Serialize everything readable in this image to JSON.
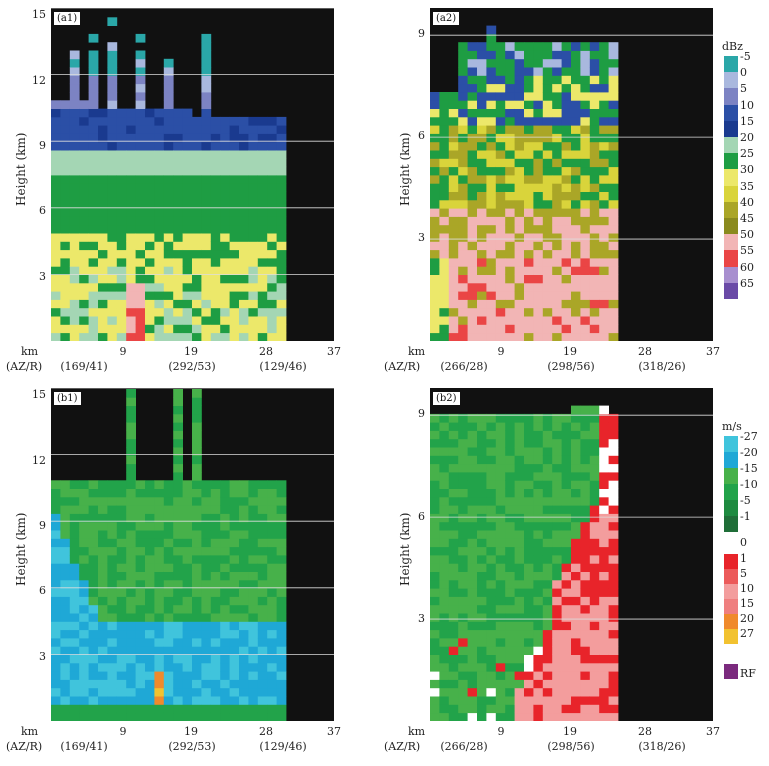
{
  "panels": [
    {
      "id": "a1",
      "tag": "(a1)",
      "ylabel": "Height (km)",
      "yticks": [
        "15",
        "12",
        "9",
        "6",
        "3"
      ],
      "xticks": [
        "9",
        "19",
        "28",
        "37"
      ],
      "km_label": "km",
      "az_label": "(AZ/R)",
      "az_ticks": [
        "(169/41)",
        "(292/53)",
        "(129/46)"
      ]
    },
    {
      "id": "a2",
      "tag": "(a2)",
      "ylabel": "Height (km)",
      "yticks": [
        "9",
        "6",
        "3"
      ],
      "xticks": [
        "9",
        "19",
        "28",
        "37"
      ],
      "km_label": "km",
      "az_label": "(AZ/R)",
      "az_ticks": [
        "(266/28)",
        "(298/56)",
        "(318/26)"
      ]
    },
    {
      "id": "b1",
      "tag": "(b1)",
      "ylabel": "Height (km)",
      "yticks": [
        "15",
        "12",
        "9",
        "6",
        "3"
      ],
      "xticks": [
        "9",
        "19",
        "28",
        "37"
      ],
      "km_label": "km",
      "az_label": "(AZ/R)",
      "az_ticks": [
        "(169/41)",
        "(292/53)",
        "(129/46)"
      ]
    },
    {
      "id": "b2",
      "tag": "(b2)",
      "ylabel": "Height (km)",
      "yticks": [
        "9",
        "6",
        "3"
      ],
      "xticks": [
        "9",
        "19",
        "28",
        "37"
      ],
      "km_label": "km",
      "az_label": "(AZ/R)",
      "az_ticks": [
        "(266/28)",
        "(298/56)",
        "(318/26)"
      ]
    }
  ],
  "legend_reflectivity": {
    "title": "dBz",
    "levels": [
      {
        "label": "-5",
        "color": "#2aa7a8"
      },
      {
        "label": "0",
        "color": "#a9b8de"
      },
      {
        "label": "5",
        "color": "#7c83c3"
      },
      {
        "label": "10",
        "color": "#2b4fa6"
      },
      {
        "label": "15",
        "color": "#1a3a8f"
      },
      {
        "label": "20",
        "color": "#a4d6b4"
      },
      {
        "label": "25",
        "color": "#1e9d43"
      },
      {
        "label": "30",
        "color": "#ece86a"
      },
      {
        "label": "35",
        "color": "#d9d43b"
      },
      {
        "label": "40",
        "color": "#aaa627"
      },
      {
        "label": "45",
        "color": "#8a8a1e"
      },
      {
        "label": "50",
        "color": "#f2b5b5"
      },
      {
        "label": "55",
        "color": "#ea4545"
      },
      {
        "label": "60",
        "color": "#a88fcf"
      },
      {
        "label": "65",
        "color": "#6a4aa7"
      }
    ]
  },
  "legend_velocity": {
    "title": "m/s",
    "negative": [
      {
        "label": "-27",
        "color": "#40c4dc"
      },
      {
        "label": "-20",
        "color": "#1fa8d6"
      },
      {
        "label": "-15",
        "color": "#47b14a"
      },
      {
        "label": "-10",
        "color": "#22a34a"
      },
      {
        "label": "-5",
        "color": "#1e8a40"
      },
      {
        "label": "-1",
        "color": "#1f6e38"
      }
    ],
    "zero": {
      "label": "0",
      "color": "#ffffff"
    },
    "positive": [
      {
        "label": "1",
        "color": "#e8242a"
      },
      {
        "label": "5",
        "color": "#ec5a5a"
      },
      {
        "label": "10",
        "color": "#f39d9d"
      },
      {
        "label": "15",
        "color": "#ef7f7f"
      },
      {
        "label": "20",
        "color": "#f08a2c"
      },
      {
        "label": "27",
        "color": "#f2c230"
      }
    ],
    "rf": {
      "label": "RF",
      "color": "#7b2a7e"
    }
  },
  "chart_data": [
    {
      "type": "heatmap",
      "title": "",
      "tag": "(a1)",
      "quantity": "reflectivity (dBz)",
      "xlabel": "km (AZ/R)",
      "ylabel": "Height (km)",
      "xlim": [
        0,
        37
      ],
      "ylim": [
        0,
        15
      ],
      "x_ticks": [
        9,
        19,
        28,
        37
      ],
      "y_ticks": [
        3,
        6,
        9,
        12,
        15
      ],
      "echo_top_km": 14.5,
      "echo_extent_km": [
        0,
        30.5
      ],
      "max_dBz": 55
    },
    {
      "type": "heatmap",
      "title": "",
      "tag": "(a2)",
      "quantity": "reflectivity (dBz)",
      "xlabel": "km (AZ/R)",
      "ylabel": "Height (km)",
      "xlim": [
        0,
        37
      ],
      "ylim": [
        0,
        9.8
      ],
      "x_ticks": [
        9,
        19,
        28,
        37
      ],
      "y_ticks": [
        3,
        6,
        9
      ],
      "echo_top_km": 9.3,
      "echo_extent_km": [
        0,
        24.5
      ],
      "max_dBz": 55
    },
    {
      "type": "heatmap",
      "title": "",
      "tag": "(b1)",
      "quantity": "radial velocity (m/s)",
      "xlabel": "km (AZ/R)",
      "ylabel": "Height (km)",
      "xlim": [
        0,
        37
      ],
      "ylim": [
        0,
        15
      ],
      "x_ticks": [
        9,
        19,
        28,
        37
      ],
      "y_ticks": [
        3,
        6,
        9,
        12,
        15
      ],
      "echo_top_km": 14.8,
      "echo_extent_km": [
        0,
        30.5
      ]
    },
    {
      "type": "heatmap",
      "title": "",
      "tag": "(b2)",
      "quantity": "radial velocity (m/s)",
      "xlabel": "km (AZ/R)",
      "ylabel": "Height (km)",
      "xlim": [
        0,
        37
      ],
      "ylim": [
        0,
        9.8
      ],
      "x_ticks": [
        9,
        19,
        28,
        37
      ],
      "y_ticks": [
        3,
        6,
        9
      ],
      "echo_top_km": 9.5,
      "echo_extent_km": [
        0,
        24.5
      ]
    }
  ]
}
